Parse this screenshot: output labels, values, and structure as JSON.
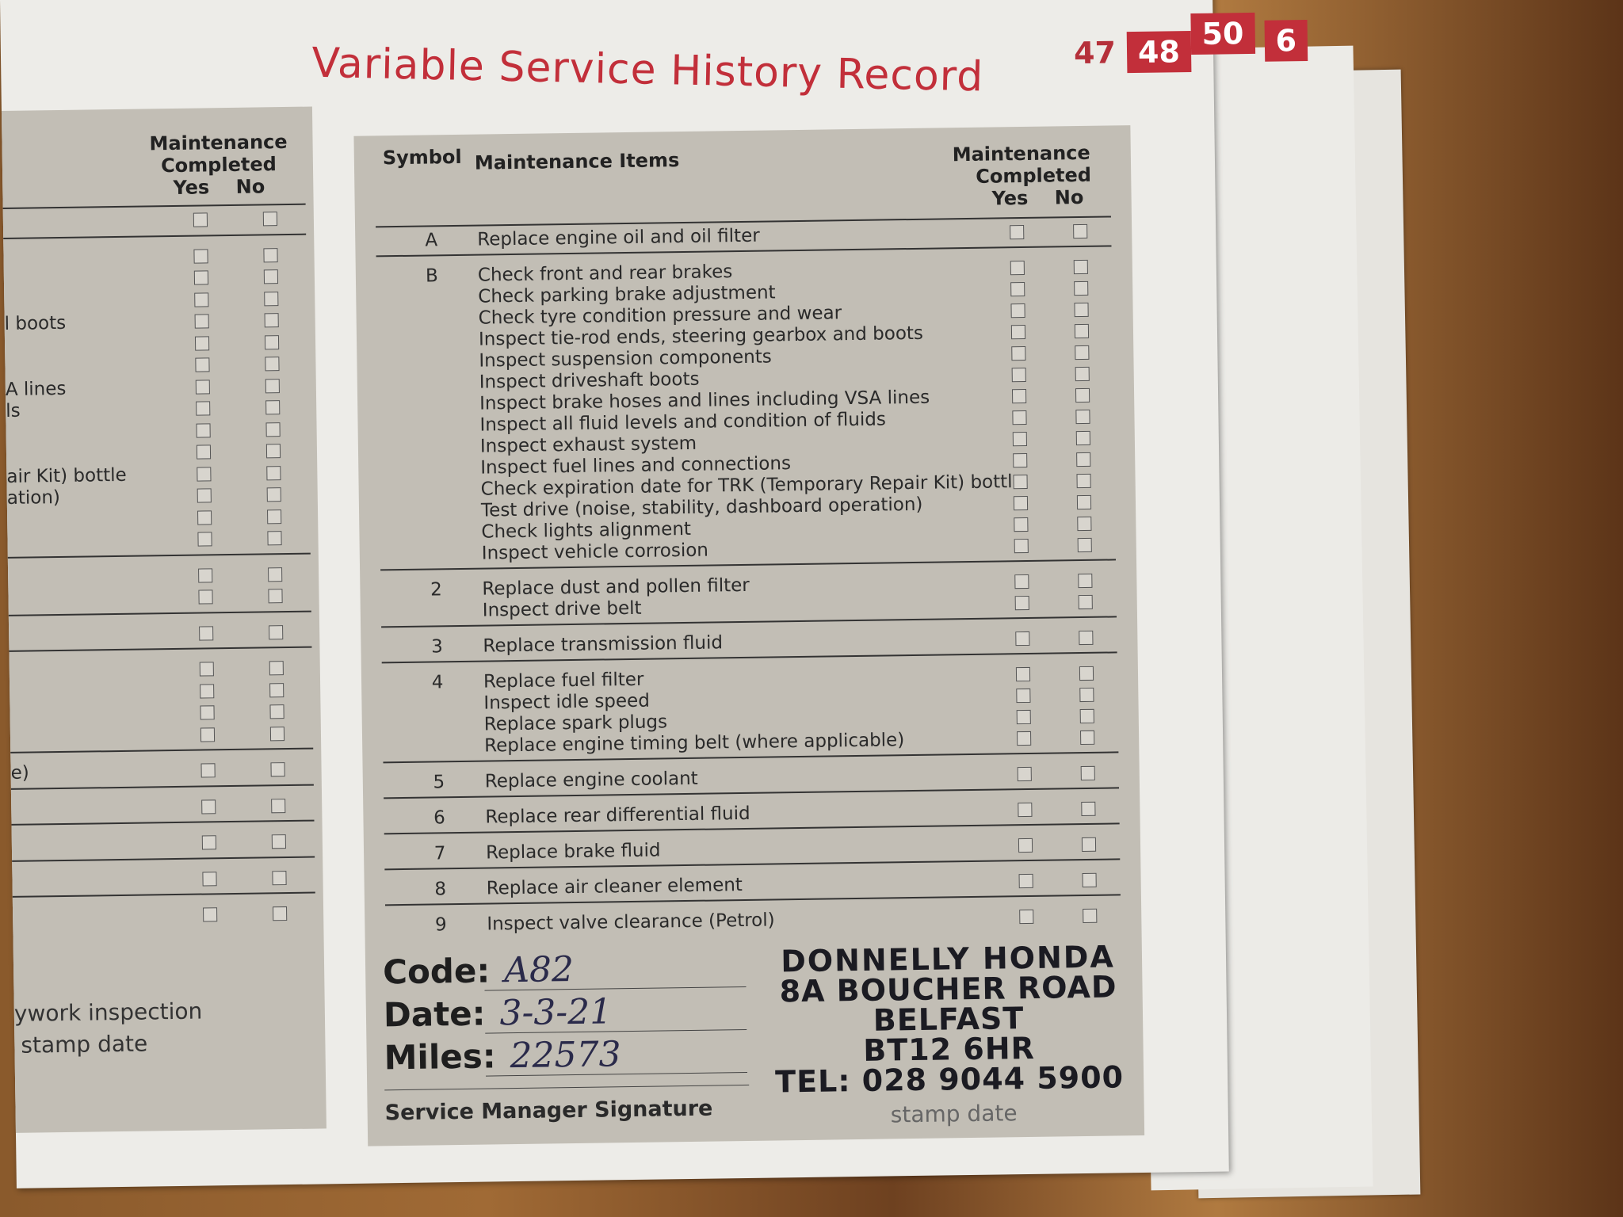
{
  "title": "Variable Service History Record",
  "page_tabs": [
    "47",
    "48",
    "50",
    "6"
  ],
  "colors": {
    "accent": "#c22f3a",
    "panel": "#c2beb5",
    "page": "#edece8"
  },
  "header": {
    "symbol": "Symbol",
    "items": "Maintenance Items",
    "completed_line1": "Maintenance",
    "completed_line2": "Completed",
    "yes": "Yes",
    "no": "No"
  },
  "groups": [
    {
      "symbol": "A",
      "items": [
        "Replace engine oil and oil filter"
      ]
    },
    {
      "symbol": "B",
      "items": [
        "Check front and rear brakes",
        "Check parking brake adjustment",
        "Check tyre condition pressure and wear",
        "Inspect tie-rod ends, steering gearbox and boots",
        "Inspect suspension components",
        "Inspect driveshaft boots",
        "Inspect brake hoses and lines including VSA lines",
        "Inspect all fluid levels and condition of fluids",
        "Inspect exhaust system",
        "Inspect fuel lines and connections",
        "Check expiration date for TRK (Temporary Repair Kit) bottle",
        "Test drive (noise, stability, dashboard operation)",
        "Check lights alignment",
        "Inspect vehicle corrosion"
      ]
    },
    {
      "symbol": "2",
      "items": [
        "Replace dust and pollen filter",
        "Inspect drive belt"
      ]
    },
    {
      "symbol": "3",
      "items": [
        "Replace transmission fluid"
      ]
    },
    {
      "symbol": "4",
      "items": [
        "Replace fuel filter",
        "Inspect idle speed",
        "Replace spark plugs",
        "Replace engine timing belt (where applicable)"
      ]
    },
    {
      "symbol": "5",
      "items": [
        "Replace engine coolant"
      ]
    },
    {
      "symbol": "6",
      "items": [
        "Replace rear differential fluid"
      ]
    },
    {
      "symbol": "7",
      "items": [
        "Replace brake fluid"
      ]
    },
    {
      "symbol": "8",
      "items": [
        "Replace air cleaner element"
      ]
    },
    {
      "symbol": "9",
      "items": [
        "Inspect valve clearance (Petrol)"
      ]
    }
  ],
  "left_page": {
    "completed_line1": "Maintenance",
    "completed_line2": "Completed",
    "yes": "Yes",
    "no": "No",
    "fragments": [
      {
        "row": 4,
        "text": "l boots"
      },
      {
        "row": 7,
        "text": "A lines"
      },
      {
        "row": 8,
        "text": "ls"
      },
      {
        "row": 11,
        "text": "air Kit) bottle"
      },
      {
        "row": 12,
        "text": "ation)"
      },
      {
        "row": 22,
        "text": "e)"
      }
    ],
    "bodywork_line1": "ywork inspection",
    "bodywork_line2": "stamp date"
  },
  "form": {
    "code_label": "Code:",
    "code_value": "A82",
    "date_label": "Date:",
    "date_value": "3-3-21",
    "miles_label": "Miles:",
    "miles_value": "22573",
    "signature_label": "Service Manager Signature",
    "stamp_date_label": "stamp date"
  },
  "stamp": {
    "line1": "DONNELLY HONDA",
    "line2": "8A BOUCHER ROAD",
    "line3": "BELFAST",
    "line4": "BT12 6HR",
    "line5": "TEL: 028 9044 5900"
  }
}
